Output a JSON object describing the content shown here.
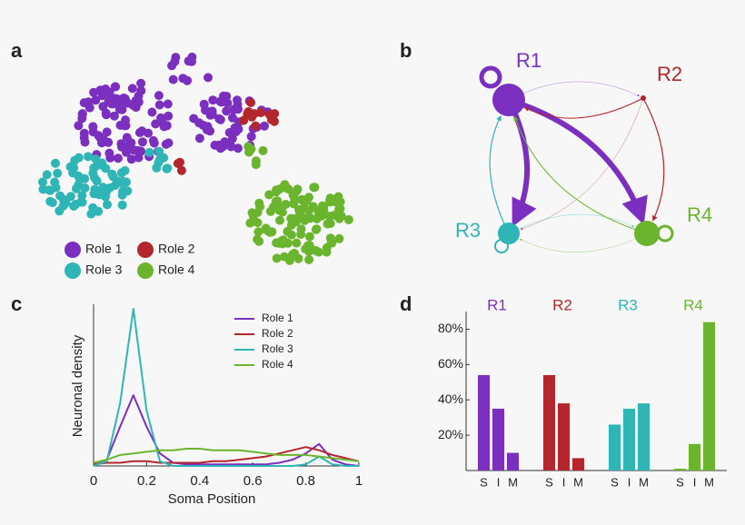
{
  "chart_data": [
    {
      "type": "cluster",
      "label": "a",
      "series": [
        {
          "name": "Role 1",
          "color": "#7b2fbf"
        },
        {
          "name": "Role 2",
          "color": "#b3262b"
        },
        {
          "name": "Role 3",
          "color": "#2fb5b5"
        },
        {
          "name": "Role 4",
          "color": "#6bb52e"
        }
      ]
    },
    {
      "type": "network",
      "label": "b",
      "nodes": [
        {
          "label": "R1",
          "color": "#7b2fbf"
        },
        {
          "label": "R2",
          "color": "#b3262b"
        },
        {
          "label": "R3",
          "color": "#2fb5b5"
        },
        {
          "label": "R4",
          "color": "#6bb52e"
        }
      ],
      "edges": [
        {
          "from": 0,
          "to": 0,
          "weight": 5
        },
        {
          "from": 0,
          "to": 2,
          "weight": 6
        },
        {
          "from": 0,
          "to": 3,
          "weight": 6
        },
        {
          "from": 0,
          "to": 1,
          "weight": 0.5
        },
        {
          "from": 1,
          "to": 0,
          "weight": 1
        },
        {
          "from": 1,
          "to": 3,
          "weight": 1.2
        },
        {
          "from": 1,
          "to": 2,
          "weight": 0.5
        },
        {
          "from": 2,
          "to": 0,
          "weight": 1.2
        },
        {
          "from": 2,
          "to": 2,
          "weight": 2
        },
        {
          "from": 2,
          "to": 3,
          "weight": 0.5
        },
        {
          "from": 3,
          "to": 0,
          "weight": 1
        },
        {
          "from": 3,
          "to": 2,
          "weight": 0.5
        },
        {
          "from": 3,
          "to": 3,
          "weight": 3
        }
      ]
    },
    {
      "type": "line",
      "label": "c",
      "xlabel": "Soma Position",
      "ylabel": "Neuronal density",
      "x": [
        0,
        0.05,
        0.1,
        0.15,
        0.2,
        0.25,
        0.3,
        0.35,
        0.4,
        0.45,
        0.5,
        0.55,
        0.6,
        0.65,
        0.7,
        0.75,
        0.8,
        0.85,
        0.9,
        0.95,
        1
      ],
      "xlim": [
        0,
        1
      ],
      "xticks": [
        0,
        0.2,
        0.4,
        0.6,
        0.8,
        1
      ],
      "ylim": [
        0,
        1
      ],
      "series": [
        {
          "name": "Role 1",
          "color": "#7b2fbf",
          "values": [
            0,
            0.04,
            0.25,
            0.45,
            0.25,
            0.08,
            0.02,
            0.01,
            0.01,
            0.01,
            0.01,
            0.01,
            0.01,
            0.01,
            0.02,
            0.04,
            0.08,
            0.14,
            0.04,
            0.01,
            0
          ]
        },
        {
          "name": "Role 2",
          "color": "#b3262b",
          "values": [
            0.01,
            0.02,
            0.02,
            0.03,
            0.03,
            0.02,
            0.02,
            0.02,
            0.02,
            0.03,
            0.03,
            0.04,
            0.05,
            0.06,
            0.08,
            0.1,
            0.12,
            0.1,
            0.07,
            0.05,
            0.03
          ]
        },
        {
          "name": "Role 3",
          "color": "#2fb5b5",
          "values": [
            0,
            0.03,
            0.4,
            1.0,
            0.35,
            0.03,
            0,
            0,
            0,
            0,
            0,
            0,
            0,
            0,
            0,
            0,
            0.01,
            0.06,
            0.01,
            0,
            0
          ]
        },
        {
          "name": "Role 4",
          "color": "#6bb52e",
          "values": [
            0.02,
            0.04,
            0.07,
            0.08,
            0.09,
            0.1,
            0.1,
            0.11,
            0.11,
            0.1,
            0.1,
            0.1,
            0.09,
            0.08,
            0.07,
            0.07,
            0.07,
            0.06,
            0.05,
            0.04,
            0.03
          ]
        }
      ]
    },
    {
      "type": "groupedbar",
      "label": "d",
      "bar_labels": [
        "S",
        "I",
        "M"
      ],
      "ylim": [
        0,
        90
      ],
      "yticks": [
        {
          "value": 20,
          "label": "20%"
        },
        {
          "value": 40,
          "label": "40%"
        },
        {
          "value": 60,
          "label": "60%"
        },
        {
          "value": 80,
          "label": "80%"
        }
      ],
      "groups": [
        {
          "name": "R1",
          "color": "#7b2fbf",
          "values": [
            54,
            35,
            10
          ]
        },
        {
          "name": "R2",
          "color": "#b3262b",
          "values": [
            54,
            38,
            7
          ]
        },
        {
          "name": "R3",
          "color": "#2fb5b5",
          "values": [
            26,
            35,
            38
          ]
        },
        {
          "name": "R4",
          "color": "#6bb52e",
          "values": [
            1,
            15,
            84
          ]
        }
      ]
    }
  ]
}
